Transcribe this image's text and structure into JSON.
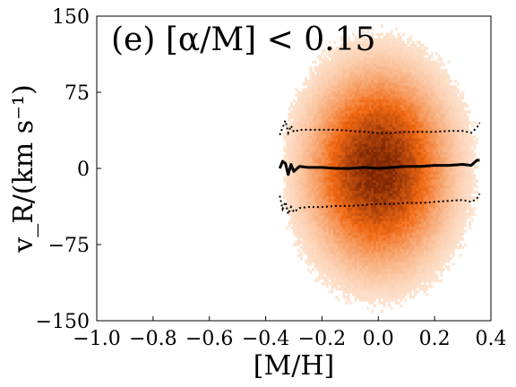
{
  "chart_data": {
    "type": "heatmap",
    "title": "(e) [α/M] < 0.15",
    "xlabel": "[M/H]",
    "ylabel": "v_R/(km s⁻¹)",
    "xlim": [
      -1.0,
      0.4
    ],
    "ylim": [
      -150,
      150
    ],
    "xticks": [
      "−1.0",
      "−0.8",
      "−0.6",
      "−0.4",
      "−0.2",
      "0.0",
      "0.2",
      "0.4"
    ],
    "yticks": [
      "−150",
      "−75",
      "0",
      "75",
      "150"
    ],
    "xtick_values": [
      -1.0,
      -0.8,
      -0.6,
      -0.4,
      -0.2,
      0.0,
      0.2,
      0.4
    ],
    "ytick_values": [
      -150,
      -75,
      0,
      75,
      150
    ],
    "grid": false,
    "colormap": {
      "name": "Oranges",
      "low": "#fff5eb",
      "mid": "#f16913",
      "high": "#7f2704"
    },
    "density": {
      "x_range": [
        -0.38,
        0.38
      ],
      "y_range": [
        -150,
        150
      ],
      "peak_x": 0.0,
      "peak_y": 0.0,
      "sigma_x": 0.13,
      "sigma_y": 50
    },
    "series": [
      {
        "style": "solid",
        "color": "#000000",
        "x": [
          -0.35,
          -0.34,
          -0.33,
          -0.32,
          -0.31,
          -0.3,
          -0.28,
          -0.25,
          -0.2,
          -0.15,
          -0.1,
          -0.05,
          0.0,
          0.05,
          0.1,
          0.15,
          0.2,
          0.25,
          0.3,
          0.33,
          0.35,
          0.36
        ],
        "y": [
          0,
          7,
          5,
          -6,
          4,
          -3,
          2,
          1,
          1,
          0,
          0,
          1,
          0,
          1,
          2,
          2,
          3,
          3,
          4,
          3,
          8,
          8
        ]
      },
      {
        "style": "dotted",
        "color": "#000000",
        "x": [
          -0.35,
          -0.34,
          -0.33,
          -0.32,
          -0.31,
          -0.3,
          -0.28,
          -0.25,
          -0.2,
          -0.15,
          -0.1,
          -0.05,
          0.0,
          0.05,
          0.1,
          0.15,
          0.2,
          0.25,
          0.3,
          0.33,
          0.35,
          0.36
        ],
        "y": [
          33,
          40,
          47,
          35,
          42,
          36,
          38,
          38,
          38,
          38,
          37,
          36,
          35,
          35,
          36,
          36,
          36,
          37,
          37,
          35,
          40,
          45
        ]
      },
      {
        "style": "dotted",
        "color": "#000000",
        "x": [
          -0.35,
          -0.34,
          -0.33,
          -0.32,
          -0.31,
          -0.3,
          -0.28,
          -0.25,
          -0.2,
          -0.15,
          -0.1,
          -0.05,
          0.0,
          0.05,
          0.1,
          0.15,
          0.2,
          0.25,
          0.3,
          0.33,
          0.35,
          0.36
        ],
        "y": [
          -27,
          -40,
          -33,
          -45,
          -38,
          -43,
          -39,
          -38,
          -38,
          -37,
          -37,
          -36,
          -35,
          -35,
          -34,
          -34,
          -33,
          -32,
          -31,
          -33,
          -30,
          -25
        ]
      }
    ]
  }
}
